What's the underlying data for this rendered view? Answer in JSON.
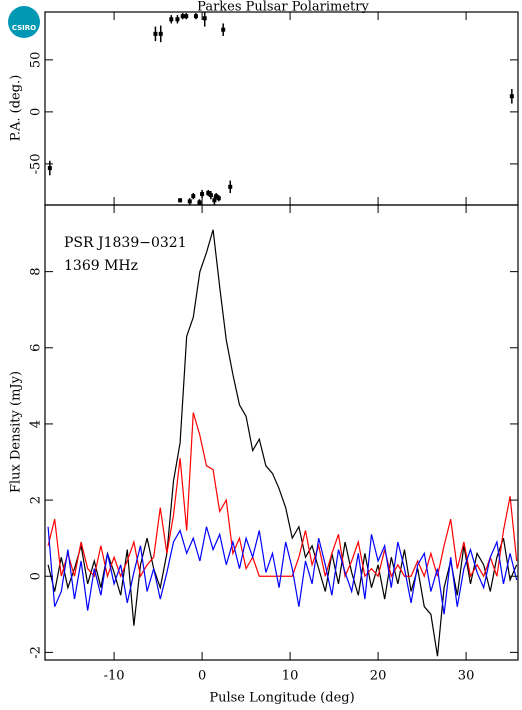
{
  "logo": "CSIRO",
  "chart_data": [
    {
      "type": "scatter",
      "title": "Parkes Pulsar Polarimetry",
      "ylabel": "P.A. (deg.)",
      "x": [
        -17.3,
        -5.3,
        -4.7,
        -3.5,
        -2.8,
        -2.2,
        -1.8,
        -0.7,
        0.3,
        2.4,
        35.2,
        -2.5,
        -1.4,
        -1.0,
        -0.3,
        0.0,
        0.7,
        1.0,
        1.4,
        1.6,
        1.9,
        3.2
      ],
      "values": [
        -54,
        75,
        75,
        89,
        89,
        92,
        92,
        92,
        90,
        79,
        15,
        -85,
        -86,
        -81,
        -87,
        -79,
        -78,
        -80,
        -85,
        -81,
        -83,
        -72
      ],
      "errors": [
        7,
        7,
        8,
        4,
        4,
        3,
        3,
        3,
        8,
        6,
        7,
        2,
        3,
        3,
        3,
        4,
        3,
        4,
        4,
        3,
        3,
        6
      ],
      "color": "#000000",
      "xlim": [
        -17.85,
        35.9
      ],
      "xticks": [
        -10,
        0,
        10,
        20,
        30
      ],
      "ylim": [
        -89.5,
        96
      ],
      "yticks": [
        -50,
        0,
        50
      ]
    },
    {
      "type": "line",
      "xlabel": "Pulse Longitude (deg)",
      "ylabel": "Flux Density (mJy)",
      "annotations": [
        "PSR J1839−0321",
        "1369 MHz"
      ],
      "x": [
        -17.5,
        -16.75,
        -16,
        -15.25,
        -14.5,
        -13.75,
        -13,
        -12.25,
        -11.5,
        -10.75,
        -10,
        -9.25,
        -8.5,
        -7.75,
        -7,
        -6.25,
        -5.5,
        -4.75,
        -4,
        -3.25,
        -2.5,
        -1.75,
        -1,
        -0.25,
        0.5,
        1.25,
        2,
        2.75,
        3.5,
        4.25,
        5,
        5.75,
        6.5,
        7.25,
        8,
        8.75,
        9.5,
        10.25,
        11,
        11.75,
        12.5,
        13.25,
        14,
        14.75,
        15.5,
        16.25,
        17,
        17.75,
        18.5,
        19.25,
        20,
        20.75,
        21.5,
        22.25,
        23,
        23.75,
        24.5,
        25.25,
        26,
        26.75,
        27.5,
        28.25,
        29,
        29.75,
        30.5,
        31.25,
        32,
        32.75,
        33.5,
        34.25,
        35,
        35.75
      ],
      "series": [
        {
          "color": "#000000",
          "values": [
            0.3,
            -0.4,
            0.5,
            -0.3,
            0.2,
            0.8,
            -0.2,
            0.4,
            -0.3,
            0.6,
            0.1,
            -0.5,
            0.7,
            -1.3,
            0.3,
            1.0,
            0.2,
            -0.3,
            0.6,
            2.5,
            3.5,
            6.3,
            6.8,
            8.0,
            8.5,
            9.1,
            7.6,
            6.2,
            5.3,
            4.5,
            4.2,
            3.3,
            3.6,
            2.9,
            2.7,
            2.3,
            1.8,
            1.0,
            1.3,
            0.5,
            0.8,
            0.2,
            -0.4,
            0.6,
            -0.2,
            0.9,
            0.1,
            -0.5,
            0.6,
            -0.3,
            0.3,
            -0.6,
            0.5,
            -0.2,
            0.7,
            -0.4,
            0.2,
            -0.8,
            -1.0,
            -2.1,
            -0.3,
            0.4,
            -0.5,
            0.8,
            -0.2,
            0.6,
            0.3,
            -0.4,
            0.5,
            1.0,
            -0.1,
            0.3
          ]
        },
        {
          "color": "#ff0000",
          "values": [
            0.8,
            1.5,
            0,
            0.6,
            0,
            0.9,
            0.2,
            0,
            0.8,
            0,
            0.5,
            0,
            0.4,
            0.9,
            0,
            0.3,
            0.5,
            1.8,
            0.6,
            1.6,
            3.1,
            1.2,
            4.3,
            3.7,
            2.9,
            2.8,
            1.7,
            2.0,
            0.6,
            1.0,
            0.2,
            0.5,
            0,
            0,
            0,
            0,
            0,
            0,
            0.5,
            1.2,
            0.3,
            0.8,
            0,
            0.6,
            1.1,
            0,
            0.4,
            0.9,
            0,
            0.2,
            0,
            0.7,
            0,
            0.3,
            0,
            0,
            0.4,
            0,
            0.6,
            0,
            0.8,
            1.5,
            0.2,
            0.9,
            0,
            0.3,
            0,
            0.5,
            0,
            1.2,
            2.1,
            0.4
          ]
        },
        {
          "color": "#0000ff",
          "values": [
            1.3,
            -0.8,
            -0.4,
            0.7,
            -0.6,
            0.4,
            -0.9,
            0.2,
            -0.5,
            0.6,
            -0.2,
            0.3,
            -0.7,
            0.1,
            0.8,
            -0.4,
            0.2,
            -0.6,
            0.1,
            0.9,
            1.2,
            0.6,
            1.0,
            0.4,
            1.3,
            0.7,
            1.1,
            0.3,
            0.9,
            0.2,
            1.0,
            0.5,
            1.2,
            0.1,
            0.6,
            -0.3,
            0.9,
            0.2,
            -0.8,
            0.4,
            -0.2,
            1.0,
            0.3,
            -0.5,
            0.7,
            0.1,
            -0.4,
            0.6,
            -0.6,
            1.1,
            0.4,
            0.8,
            -0.3,
            0.9,
            0.2,
            -0.7,
            0.3,
            0.6,
            -0.4,
            0.2,
            -1.0,
            0.5,
            -0.8,
            0.2,
            0.7,
            0.1,
            -0.3,
            0.5,
            0.9,
            -0.2,
            0.6,
            -0.1
          ]
        }
      ],
      "xlim": [
        -17.85,
        35.9
      ],
      "xticks": [
        -10,
        0,
        10,
        20,
        30
      ],
      "ylim": [
        -2.2,
        9.75
      ],
      "yticks": [
        -2,
        0,
        2,
        4,
        6,
        8
      ]
    }
  ]
}
